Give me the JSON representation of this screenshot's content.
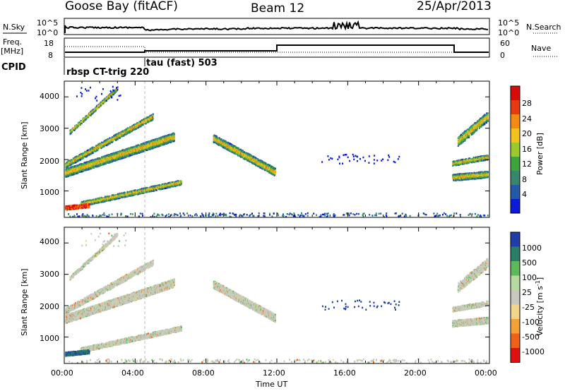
{
  "header": {
    "site": "Goose Bay (fitACF)",
    "beam": "Beam 12",
    "date": "25/Apr/2013"
  },
  "summary_panels": {
    "nsky_label": "N.Sky",
    "nsearch_label": "N.Search",
    "nsky_ticks": [
      "10^5",
      "10^0"
    ],
    "nsearch_ticks": [
      "10^5",
      "10^0"
    ],
    "freq_label": "Freq.",
    "freq_unit": "[MHz]",
    "freq_ticks": [
      "18",
      "8"
    ],
    "nave_label": "Nave",
    "nave_ticks": [
      "60",
      "0"
    ],
    "cpid_label": "CPID",
    "cpid_segments": [
      {
        "label": "rbsp CT-trig 220",
        "start_hour": 0,
        "end_hour": 4.8
      },
      {
        "label": "tau (fast) 503",
        "start_hour": 4.8,
        "end_hour": 24
      }
    ]
  },
  "power_panel": {
    "ylabel": "Slant Range [km]",
    "yticks": [
      "4000",
      "3000",
      "2000",
      "1000"
    ],
    "colorbar_label": "Power [dB]",
    "colorbar_ticks": [
      "28",
      "24",
      "20",
      "16",
      "12",
      "8",
      "4"
    ],
    "colors": [
      "#0b1bd6",
      "#2459a6",
      "#36876c",
      "#3ea43e",
      "#9acb2a",
      "#f4c21c",
      "#f58a10",
      "#e83a10",
      "#d80a0a"
    ]
  },
  "velocity_panel": {
    "ylabel": "Slant Range [km]",
    "yticks": [
      "4000",
      "3000",
      "2000",
      "1000"
    ],
    "colorbar_label": "Velocity [m s",
    "colorbar_sup": "-1",
    "colorbar_ticks": [
      "1000",
      "500",
      "100",
      "25",
      "-25",
      "-100",
      "-500",
      "-1000"
    ],
    "colors": [
      "#1f3ea8",
      "#2a7d66",
      "#5fb85a",
      "#b8d9a2",
      "#c8c8c0",
      "#f2d48a",
      "#f3a23a",
      "#f06018",
      "#e01010"
    ]
  },
  "xaxis": {
    "label": "Time UT",
    "ticks": [
      "00:00",
      "04:00",
      "08:00",
      "12:00",
      "16:00",
      "20:00",
      "00:00"
    ]
  },
  "chart_data": [
    {
      "type": "heatmap",
      "title": "",
      "xlabel": "Time UT",
      "ylabel": "Slant Range [km]",
      "xlim_hours": [
        0,
        24
      ],
      "ylim_km": [
        180,
        4500
      ],
      "colorbar": "Power [dB]",
      "features": [
        {
          "desc": "F-region band",
          "start_hour": 0.1,
          "end_hour": 6.2,
          "range_start_km": 1650,
          "range_end_km": 2700,
          "value": 16
        },
        {
          "desc": "near range",
          "start_hour": 0.1,
          "end_hour": 1.3,
          "range_start_km": 500,
          "range_end_km": 500,
          "value": 28
        },
        {
          "desc": "band 2",
          "start_hour": 0.9,
          "end_hour": 6.5,
          "range_start_km": 600,
          "range_end_km": 1250,
          "value": 12
        },
        {
          "desc": "afternoon band",
          "start_hour": 8.5,
          "end_hour": 11.9,
          "range_start_km": 2600,
          "range_end_km": 1650,
          "value": 18
        },
        {
          "desc": "evening",
          "start_hour": 21.9,
          "end_hour": 23.9,
          "range_start_km": 1500,
          "range_end_km": 1500,
          "value": 20
        }
      ]
    },
    {
      "type": "heatmap",
      "title": "",
      "xlabel": "Time UT",
      "ylabel": "Slant Range [km]",
      "xlim_hours": [
        0,
        24
      ],
      "ylim_km": [
        180,
        4500
      ],
      "colorbar": "Velocity [m s-1]"
    }
  ]
}
